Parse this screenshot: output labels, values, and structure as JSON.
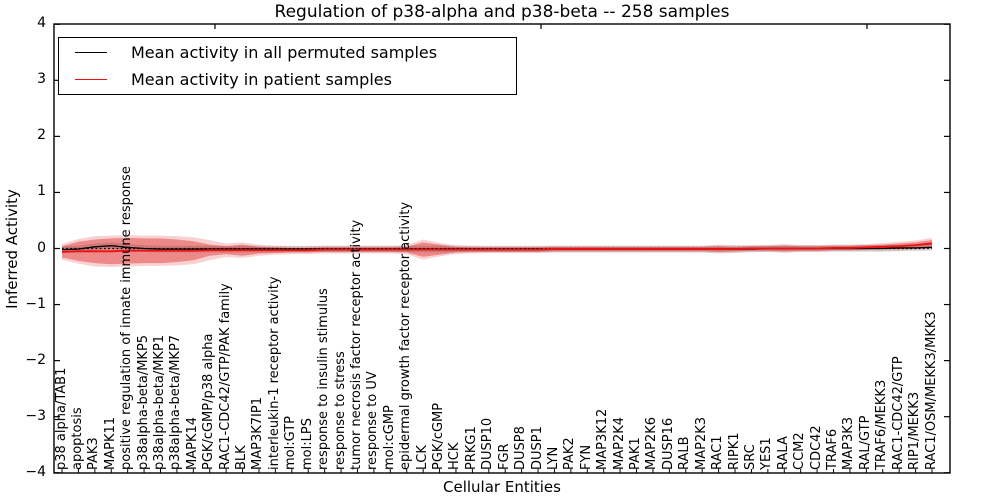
{
  "title": "Regulation of p38-alpha and p38-beta -- 258 samples",
  "axes": {
    "xlabel": "Cellular Entities",
    "ylabel": "Inferred Activity",
    "yticks": [
      4,
      3,
      2,
      1,
      0,
      -1,
      -2,
      -3,
      -4
    ],
    "yticklabels": [
      "4",
      "3",
      "2",
      "1",
      "0",
      "−1",
      "−2",
      "−3",
      "−4"
    ]
  },
  "legend": {
    "items": [
      {
        "label": "Mean activity in all permuted samples",
        "color": "#000000"
      },
      {
        "label": "Mean activity in patient samples",
        "color": "#ee1111"
      }
    ]
  },
  "chart_data": {
    "type": "line",
    "title": "Regulation of p38-alpha and p38-beta -- 258 samples",
    "xlabel": "Cellular Entities",
    "ylabel": "Inferred Activity",
    "ylim": [
      -4,
      4
    ],
    "grid": false,
    "legend_position": "upper left",
    "zero_line_style": "dotted",
    "categories": [
      "p38 alpha/TAB1",
      "apoptosis",
      "PAK3",
      "MAPK11",
      "positive regulation of innate immune response",
      "p38alpha-beta/MKP5",
      "p38alpha-beta/MKP1",
      "p38alpha-beta/MKP7",
      "MAPK14",
      "PGK/cGMP/p38 alpha",
      "RAC1-CDC42/GTP/PAK family",
      "BLK",
      "MAP3K7IP1",
      "interleukin-1 receptor activity",
      "mol:GTP",
      "mol:LPS",
      "response to insulin stimulus",
      "response to stress",
      "tumor necrosis factor receptor activity",
      "response to UV",
      "mol:cGMP",
      "epidermal growth factor receptor activity",
      "LCK",
      "PGK/cGMP",
      "HCK",
      "PRKG1",
      "DUSP10",
      "FGR",
      "DUSP8",
      "DUSP1",
      "LYN",
      "PAK2",
      "FYN",
      "MAP3K12",
      "MAP2K4",
      "PAK1",
      "MAP2K6",
      "DUSP16",
      "RALB",
      "MAP2K3",
      "RAC1",
      "RIPK1",
      "SRC",
      "YES1",
      "RALA",
      "CCM2",
      "CDC42",
      "TRAF6",
      "MAP3K3",
      "RAL/GTP",
      "TRAF6/MEKK3",
      "RAC1-CDC42/GTP",
      "RIP1/MEKK3",
      "RAC1/OSM/MEKK3/MKK3"
    ],
    "series": [
      {
        "name": "Mean activity in all permuted samples",
        "color": "#000000",
        "values": [
          -0.02,
          -0.01,
          0.03,
          0.05,
          0.02,
          0.0,
          -0.01,
          -0.01,
          -0.01,
          -0.01,
          -0.01,
          -0.01,
          -0.01,
          -0.01,
          -0.01,
          -0.01,
          -0.01,
          -0.01,
          -0.01,
          -0.01,
          -0.01,
          -0.01,
          -0.01,
          -0.01,
          -0.01,
          -0.01,
          -0.01,
          -0.01,
          -0.01,
          -0.01,
          -0.01,
          -0.01,
          -0.01,
          -0.01,
          -0.01,
          -0.01,
          -0.01,
          -0.01,
          -0.01,
          -0.01,
          -0.01,
          -0.01,
          -0.01,
          0.0,
          0.0,
          0.0,
          0.0,
          0.0,
          0.0,
          0.0,
          0.0,
          0.01,
          0.01,
          0.02
        ]
      },
      {
        "name": "Mean activity in patient samples",
        "color": "#ee1111",
        "values": [
          -0.06,
          -0.05,
          -0.05,
          -0.05,
          -0.04,
          -0.04,
          -0.04,
          -0.04,
          -0.04,
          -0.03,
          -0.03,
          -0.03,
          -0.03,
          -0.03,
          -0.03,
          -0.03,
          -0.02,
          -0.02,
          -0.02,
          -0.02,
          -0.02,
          -0.02,
          -0.02,
          -0.02,
          -0.02,
          -0.02,
          -0.02,
          -0.02,
          -0.02,
          -0.02,
          -0.01,
          -0.01,
          -0.01,
          -0.01,
          -0.01,
          -0.01,
          -0.01,
          -0.01,
          -0.01,
          -0.01,
          -0.01,
          -0.01,
          0.0,
          0.0,
          0.0,
          0.0,
          0.0,
          0.01,
          0.01,
          0.02,
          0.03,
          0.04,
          0.06,
          0.09
        ]
      }
    ],
    "bands": [
      {
        "name": "patient-outer-band",
        "center": 1,
        "color": "#dc1c1c",
        "opacity": 0.2,
        "halfwidths": [
          0.14,
          0.22,
          0.27,
          0.28,
          0.28,
          0.27,
          0.27,
          0.26,
          0.24,
          0.18,
          0.12,
          0.14,
          0.1,
          0.08,
          0.07,
          0.07,
          0.07,
          0.07,
          0.07,
          0.07,
          0.07,
          0.08,
          0.18,
          0.12,
          0.08,
          0.07,
          0.06,
          0.06,
          0.06,
          0.06,
          0.06,
          0.06,
          0.06,
          0.06,
          0.06,
          0.06,
          0.06,
          0.06,
          0.06,
          0.06,
          0.08,
          0.07,
          0.06,
          0.06,
          0.08,
          0.06,
          0.06,
          0.06,
          0.06,
          0.06,
          0.07,
          0.08,
          0.08,
          0.1
        ]
      },
      {
        "name": "patient-inner-band",
        "center": 1,
        "color": "#dc1c1c",
        "opacity": 0.4,
        "halfwidths": [
          0.1,
          0.17,
          0.21,
          0.23,
          0.23,
          0.22,
          0.22,
          0.2,
          0.17,
          0.1,
          0.07,
          0.1,
          0.06,
          0.05,
          0.04,
          0.04,
          0.04,
          0.04,
          0.04,
          0.04,
          0.04,
          0.05,
          0.13,
          0.09,
          0.05,
          0.04,
          0.04,
          0.04,
          0.04,
          0.04,
          0.04,
          0.04,
          0.04,
          0.04,
          0.04,
          0.04,
          0.04,
          0.04,
          0.04,
          0.04,
          0.05,
          0.04,
          0.04,
          0.04,
          0.05,
          0.04,
          0.04,
          0.04,
          0.04,
          0.04,
          0.04,
          0.05,
          0.05,
          0.06
        ]
      },
      {
        "name": "permuted-band",
        "center": 0,
        "color": "#000000",
        "opacity": 0.12,
        "halfwidths": 0.06
      }
    ]
  }
}
